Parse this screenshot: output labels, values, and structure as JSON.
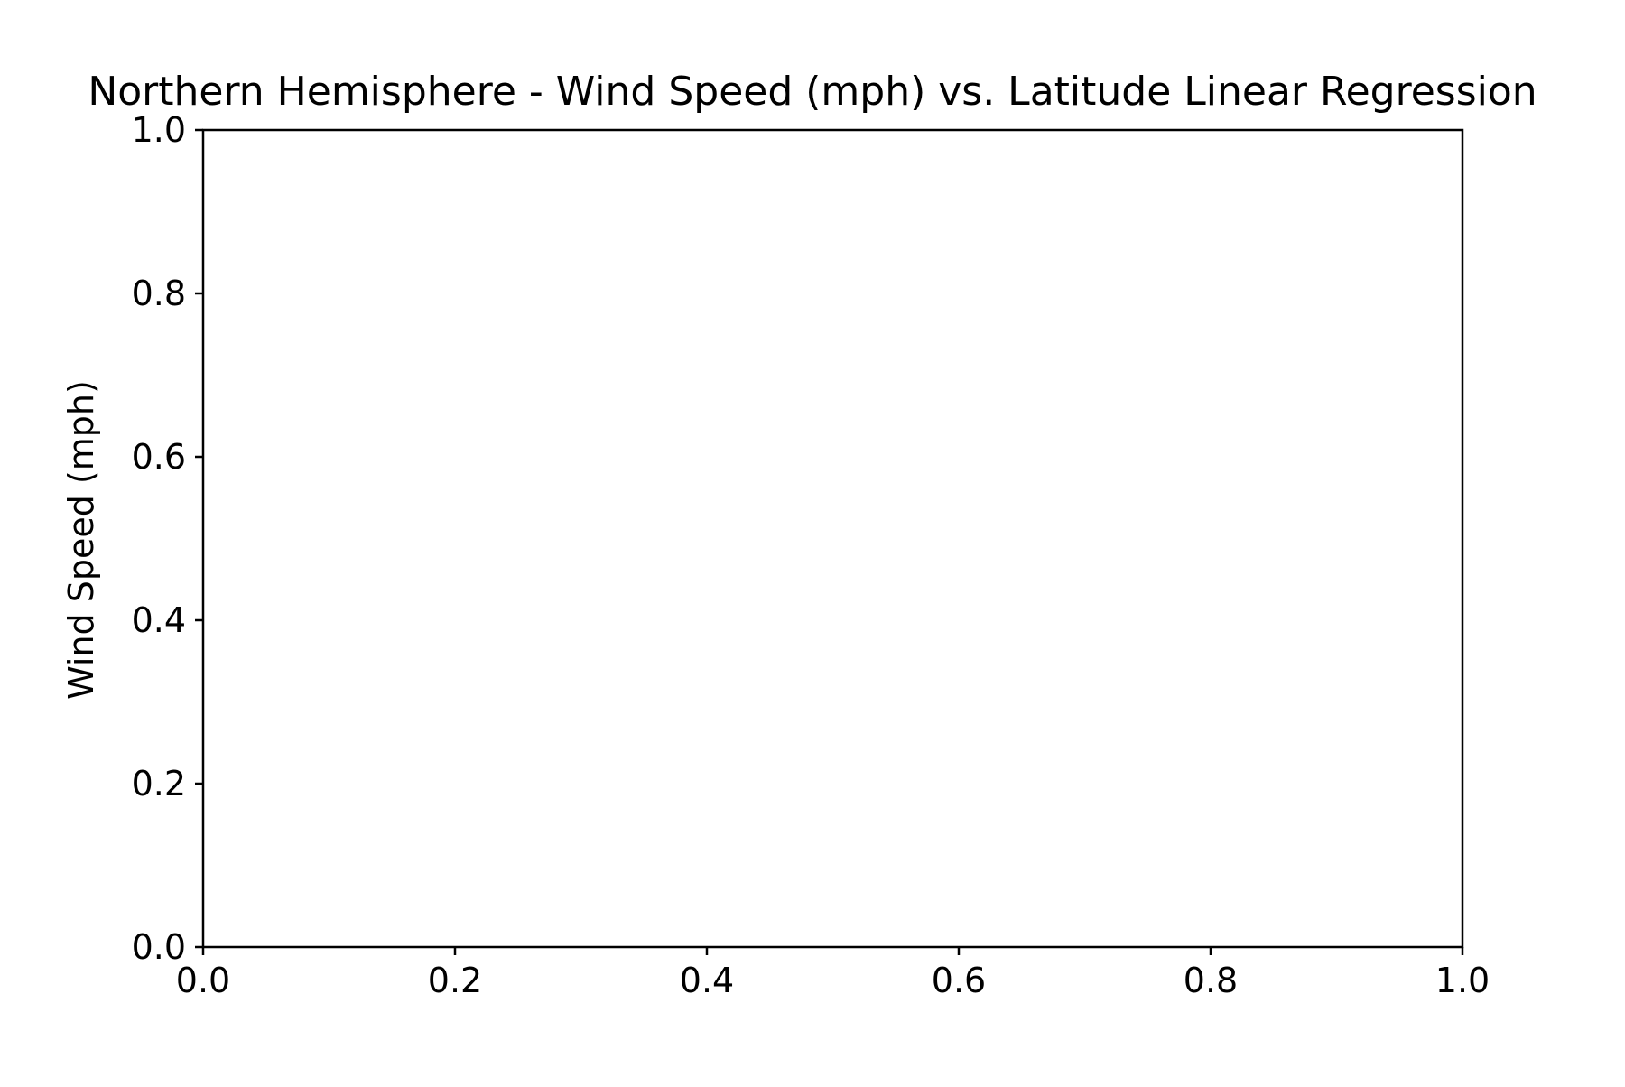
{
  "chart_data": {
    "type": "scatter",
    "title": "Northern Hemisphere - Wind Speed (mph) vs. Latitude Linear Regression",
    "xlabel": "",
    "ylabel": "Wind Speed (mph)",
    "xlim": [
      0.0,
      1.0
    ],
    "ylim": [
      0.0,
      1.0
    ],
    "x_ticks": [
      "0.0",
      "0.2",
      "0.4",
      "0.6",
      "0.8",
      "1.0"
    ],
    "y_ticks": [
      "0.0",
      "0.2",
      "0.4",
      "0.6",
      "0.8",
      "1.0"
    ],
    "series": [],
    "grid": false,
    "background_color": "#ffffff",
    "axis_color": "#000000"
  }
}
